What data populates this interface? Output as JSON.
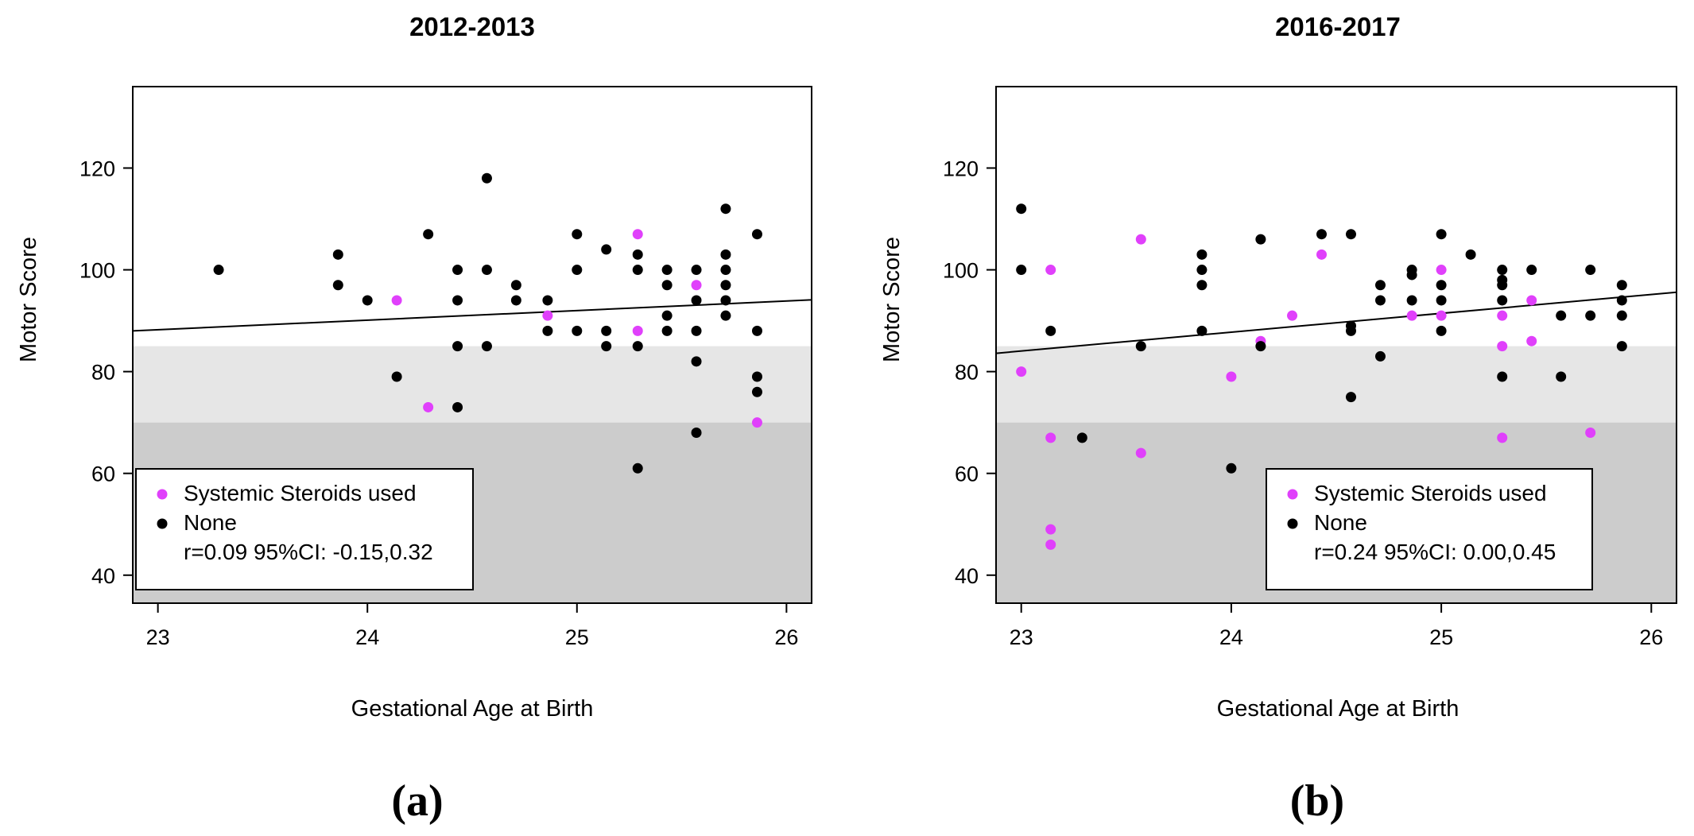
{
  "chart_data": [
    {
      "type": "scatter",
      "title": "2012-2013",
      "xlabel": "Gestational Age at Birth",
      "ylabel": "Motor Score",
      "panel_label": "(a)",
      "xlim": [
        22.88,
        26.12
      ],
      "ylim": [
        34.5,
        136
      ],
      "xticks": [
        23,
        24,
        25,
        26
      ],
      "yticks": [
        40,
        60,
        80,
        100,
        120
      ],
      "bands": [
        {
          "from": 70,
          "to": 85,
          "color": "#e6e6e6"
        },
        {
          "from": 34.5,
          "to": 70,
          "color": "#cccccc"
        }
      ],
      "trend_line": {
        "x": [
          22.88,
          26.12
        ],
        "y": [
          88.0,
          94.1
        ]
      },
      "legend": {
        "position": "bottom-left",
        "entries": [
          "Systemic Steroids used",
          "None"
        ],
        "stat": "r=0.09 95%CI: -0.15,0.32"
      },
      "series": [
        {
          "name": "Systemic Steroids used",
          "color": "#e040fb",
          "points": [
            [
              24.14,
              94
            ],
            [
              24.29,
              73
            ],
            [
              24.86,
              91
            ],
            [
              25.29,
              107
            ],
            [
              25.29,
              88
            ],
            [
              25.57,
              97
            ],
            [
              25.86,
              70
            ]
          ]
        },
        {
          "name": "None",
          "color": "#000000",
          "points": [
            [
              23.29,
              100
            ],
            [
              23.86,
              103
            ],
            [
              23.86,
              97
            ],
            [
              24.0,
              94
            ],
            [
              24.14,
              79
            ],
            [
              24.29,
              107
            ],
            [
              24.43,
              100
            ],
            [
              24.43,
              94
            ],
            [
              24.43,
              85
            ],
            [
              24.43,
              73
            ],
            [
              24.57,
              118
            ],
            [
              24.57,
              100
            ],
            [
              24.57,
              85
            ],
            [
              24.71,
              97
            ],
            [
              24.71,
              94
            ],
            [
              24.86,
              94
            ],
            [
              24.86,
              88
            ],
            [
              25.0,
              107
            ],
            [
              25.0,
              100
            ],
            [
              25.0,
              88
            ],
            [
              25.14,
              104
            ],
            [
              25.14,
              88
            ],
            [
              25.14,
              85
            ],
            [
              25.29,
              103
            ],
            [
              25.29,
              100
            ],
            [
              25.29,
              85
            ],
            [
              25.29,
              61
            ],
            [
              25.43,
              100
            ],
            [
              25.43,
              97
            ],
            [
              25.43,
              91
            ],
            [
              25.43,
              88
            ],
            [
              25.57,
              100
            ],
            [
              25.57,
              94
            ],
            [
              25.57,
              88
            ],
            [
              25.57,
              82
            ],
            [
              25.57,
              68
            ],
            [
              25.71,
              112
            ],
            [
              25.71,
              103
            ],
            [
              25.71,
              100
            ],
            [
              25.71,
              97
            ],
            [
              25.71,
              94
            ],
            [
              25.71,
              91
            ],
            [
              25.86,
              107
            ],
            [
              25.86,
              88
            ],
            [
              25.86,
              79
            ],
            [
              25.86,
              76
            ]
          ]
        }
      ]
    },
    {
      "type": "scatter",
      "title": "2016-2017",
      "xlabel": "Gestational Age at Birth",
      "ylabel": "Motor Score",
      "panel_label": "(b)",
      "xlim": [
        22.88,
        26.12
      ],
      "ylim": [
        34.5,
        136
      ],
      "xticks": [
        23,
        24,
        25,
        26
      ],
      "yticks": [
        40,
        60,
        80,
        100,
        120
      ],
      "bands": [
        {
          "from": 70,
          "to": 85,
          "color": "#e6e6e6"
        },
        {
          "from": 34.5,
          "to": 70,
          "color": "#cccccc"
        }
      ],
      "trend_line": {
        "x": [
          22.88,
          26.12
        ],
        "y": [
          83.6,
          95.6
        ]
      },
      "legend": {
        "position": "bottom-right",
        "entries": [
          "Systemic Steroids used",
          "None"
        ],
        "stat": "r=0.24 95%CI: 0.00,0.45"
      },
      "series": [
        {
          "name": "Systemic Steroids used",
          "color": "#e040fb",
          "points": [
            [
              23.0,
              80
            ],
            [
              23.14,
              100
            ],
            [
              23.14,
              67
            ],
            [
              23.14,
              49
            ],
            [
              23.14,
              46
            ],
            [
              23.57,
              106
            ],
            [
              23.57,
              64
            ],
            [
              24.0,
              79
            ],
            [
              24.14,
              86
            ],
            [
              24.29,
              91
            ],
            [
              24.43,
              103
            ],
            [
              24.86,
              91
            ],
            [
              25.0,
              100
            ],
            [
              25.0,
              91
            ],
            [
              25.29,
              91
            ],
            [
              25.29,
              85
            ],
            [
              25.29,
              67
            ],
            [
              25.43,
              94
            ],
            [
              25.43,
              86
            ],
            [
              25.71,
              68
            ]
          ]
        },
        {
          "name": "None",
          "color": "#000000",
          "points": [
            [
              23.0,
              112
            ],
            [
              23.0,
              100
            ],
            [
              23.14,
              88
            ],
            [
              23.29,
              67
            ],
            [
              23.57,
              85
            ],
            [
              23.86,
              103
            ],
            [
              23.86,
              100
            ],
            [
              23.86,
              97
            ],
            [
              23.86,
              88
            ],
            [
              24.0,
              61
            ],
            [
              24.14,
              106
            ],
            [
              24.14,
              85
            ],
            [
              24.43,
              107
            ],
            [
              24.57,
              107
            ],
            [
              24.57,
              89
            ],
            [
              24.57,
              88
            ],
            [
              24.57,
              75
            ],
            [
              24.71,
              97
            ],
            [
              24.71,
              94
            ],
            [
              24.71,
              83
            ],
            [
              24.86,
              100
            ],
            [
              24.86,
              99
            ],
            [
              24.86,
              94
            ],
            [
              25.0,
              107
            ],
            [
              25.0,
              97
            ],
            [
              25.0,
              94
            ],
            [
              25.0,
              88
            ],
            [
              25.14,
              103
            ],
            [
              25.29,
              100
            ],
            [
              25.29,
              98
            ],
            [
              25.29,
              97
            ],
            [
              25.29,
              94
            ],
            [
              25.29,
              79
            ],
            [
              25.43,
              100
            ],
            [
              25.57,
              91
            ],
            [
              25.57,
              79
            ],
            [
              25.71,
              100
            ],
            [
              25.71,
              91
            ],
            [
              25.86,
              97
            ],
            [
              25.86,
              94
            ],
            [
              25.86,
              91
            ],
            [
              25.86,
              85
            ]
          ]
        }
      ]
    }
  ]
}
